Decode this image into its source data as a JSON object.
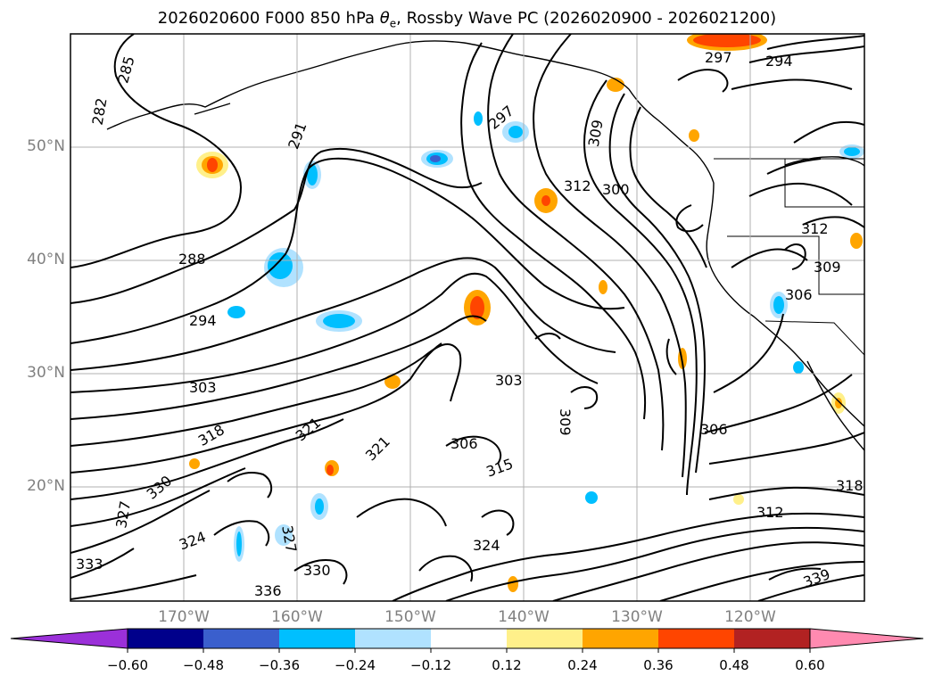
{
  "title": {
    "prefix": "2026020600 F000 850 hPa ",
    "theta_symbol": "θ",
    "theta_subscript": "e",
    "suffix": ", Rossby Wave PC (2026020900 - 2026021200)"
  },
  "map": {
    "lat_labels": [
      "50°N",
      "40°N",
      "30°N",
      "20°N"
    ],
    "lon_labels": [
      "170°W",
      "160°W",
      "150°W",
      "140°W",
      "130°W",
      "120°W"
    ],
    "contour_labels": [
      "297",
      "285",
      "282",
      "291",
      "288",
      "294",
      "303",
      "312",
      "300",
      "309",
      "306",
      "303",
      "309",
      "312",
      "318",
      "321",
      "306",
      "315",
      "321",
      "330",
      "327",
      "324",
      "336",
      "330",
      "324",
      "333",
      "339",
      "297",
      "294",
      "309",
      "306",
      "318",
      "327",
      "312"
    ]
  },
  "colorbar": {
    "colors": [
      "#9b30d9",
      "#00008b",
      "#3a5fcd",
      "#00bfff",
      "#b0e2ff",
      "#ffffff",
      "#fff08a",
      "#ffa500",
      "#ff4500",
      "#b22222",
      "#ff8ab0"
    ],
    "tick_labels": [
      "−0.60",
      "−0.48",
      "−0.36",
      "−0.24",
      "−0.12",
      "0.12",
      "0.24",
      "0.36",
      "0.48",
      "0.60"
    ]
  }
}
